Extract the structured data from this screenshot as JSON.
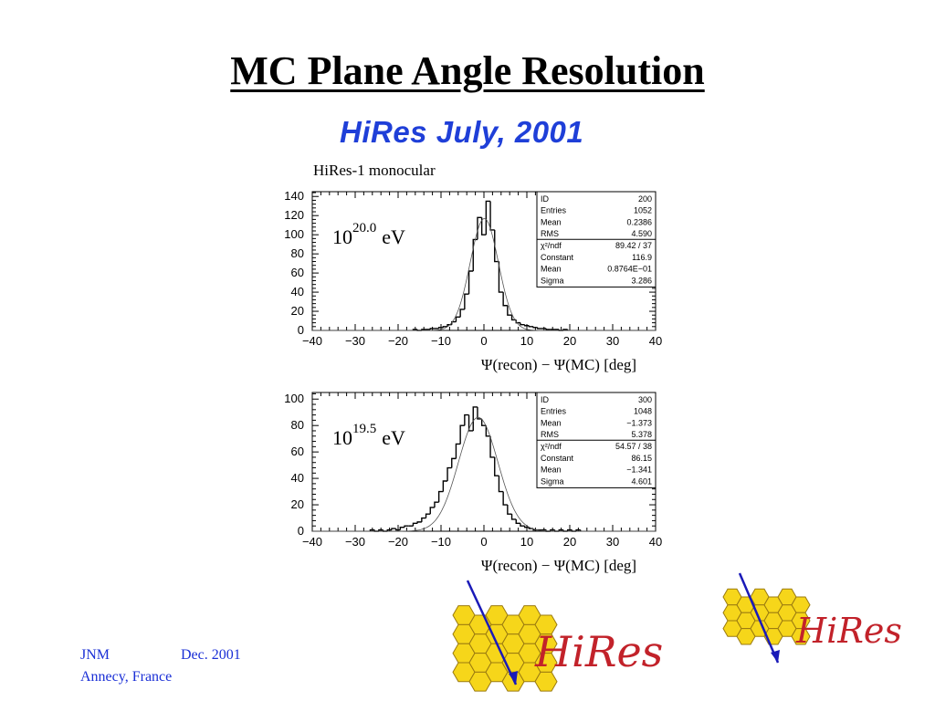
{
  "slide": {
    "title": "MC Plane Angle Resolution",
    "banner": "HiRes July, 2001",
    "caption": "HiRes-1 monocular"
  },
  "footer": {
    "author": "JNM",
    "date": "Dec. 2001",
    "place": "Annecy, France"
  },
  "logo": {
    "text": "HiRes"
  },
  "chart_data": [
    {
      "type": "histogram",
      "energy": {
        "base": "10",
        "exponent": "20.0",
        "unit": "eV"
      },
      "xlabel": "Ψ(recon) − Ψ(MC) [deg]",
      "xlim": [
        -40,
        40
      ],
      "ylim": [
        0,
        145
      ],
      "xticks": [
        -40,
        -30,
        -20,
        -10,
        0,
        10,
        20,
        30,
        40
      ],
      "yticks": [
        0,
        20,
        40,
        60,
        80,
        100,
        120,
        140
      ],
      "stats": [
        [
          "ID",
          "200"
        ],
        [
          "Entries",
          "1052"
        ],
        [
          "Mean",
          "0.2386"
        ],
        [
          "RMS",
          "4.590"
        ],
        [
          "χ²/ndf",
          "89.42   /   37"
        ],
        [
          "Constant",
          "116.9"
        ],
        [
          "Mean",
          "0.8764E−01"
        ],
        [
          "Sigma",
          "3.286"
        ]
      ],
      "fit": {
        "constant": 116.9,
        "mean": 0.08764,
        "sigma": 3.286
      },
      "bin_width": 1,
      "bins": [
        {
          "x": -16,
          "y": 1
        },
        {
          "x": -15,
          "y": 0
        },
        {
          "x": -14,
          "y": 1
        },
        {
          "x": -13,
          "y": 1
        },
        {
          "x": -12,
          "y": 2
        },
        {
          "x": -11,
          "y": 2
        },
        {
          "x": -10,
          "y": 3
        },
        {
          "x": -9,
          "y": 4
        },
        {
          "x": -8,
          "y": 6
        },
        {
          "x": -7,
          "y": 9
        },
        {
          "x": -6,
          "y": 14
        },
        {
          "x": -5,
          "y": 22
        },
        {
          "x": -4,
          "y": 38
        },
        {
          "x": -3,
          "y": 62
        },
        {
          "x": -2,
          "y": 95
        },
        {
          "x": -1,
          "y": 118
        },
        {
          "x": 0,
          "y": 100
        },
        {
          "x": 1,
          "y": 135
        },
        {
          "x": 2,
          "y": 105
        },
        {
          "x": 3,
          "y": 72
        },
        {
          "x": 4,
          "y": 40
        },
        {
          "x": 5,
          "y": 26
        },
        {
          "x": 6,
          "y": 16
        },
        {
          "x": 7,
          "y": 11
        },
        {
          "x": 8,
          "y": 8
        },
        {
          "x": 9,
          "y": 6
        },
        {
          "x": 10,
          "y": 5
        },
        {
          "x": 11,
          "y": 4
        },
        {
          "x": 12,
          "y": 3
        },
        {
          "x": 13,
          "y": 2
        },
        {
          "x": 14,
          "y": 2
        },
        {
          "x": 15,
          "y": 1
        },
        {
          "x": 16,
          "y": 1
        },
        {
          "x": 17,
          "y": 1
        },
        {
          "x": 18,
          "y": 0
        },
        {
          "x": 19,
          "y": 1
        }
      ]
    },
    {
      "type": "histogram",
      "energy": {
        "base": "10",
        "exponent": "19.5",
        "unit": "eV"
      },
      "xlabel": "Ψ(recon) − Ψ(MC) [deg]",
      "xlim": [
        -40,
        40
      ],
      "ylim": [
        0,
        105
      ],
      "xticks": [
        -40,
        -30,
        -20,
        -10,
        0,
        10,
        20,
        30,
        40
      ],
      "yticks": [
        0,
        20,
        40,
        60,
        80,
        100
      ],
      "stats": [
        [
          "ID",
          "300"
        ],
        [
          "Entries",
          "1048"
        ],
        [
          "Mean",
          "−1.373"
        ],
        [
          "RMS",
          "5.378"
        ],
        [
          "χ²/ndf",
          "54.57   /   38"
        ],
        [
          "Constant",
          "86.15"
        ],
        [
          "Mean",
          "−1.341"
        ],
        [
          "Sigma",
          "4.601"
        ]
      ],
      "fit": {
        "constant": 86.15,
        "mean": -1.341,
        "sigma": 4.601
      },
      "bin_width": 1,
      "bins": [
        {
          "x": -26,
          "y": 1
        },
        {
          "x": -25,
          "y": 0
        },
        {
          "x": -24,
          "y": 1
        },
        {
          "x": -23,
          "y": 0
        },
        {
          "x": -22,
          "y": 1
        },
        {
          "x": -21,
          "y": 2
        },
        {
          "x": -20,
          "y": 1
        },
        {
          "x": -19,
          "y": 3
        },
        {
          "x": -18,
          "y": 4
        },
        {
          "x": -17,
          "y": 4
        },
        {
          "x": -16,
          "y": 6
        },
        {
          "x": -15,
          "y": 7
        },
        {
          "x": -14,
          "y": 10
        },
        {
          "x": -13,
          "y": 13
        },
        {
          "x": -12,
          "y": 18
        },
        {
          "x": -11,
          "y": 22
        },
        {
          "x": -10,
          "y": 30
        },
        {
          "x": -9,
          "y": 38
        },
        {
          "x": -8,
          "y": 48
        },
        {
          "x": -7,
          "y": 55
        },
        {
          "x": -6,
          "y": 66
        },
        {
          "x": -5,
          "y": 80
        },
        {
          "x": -4,
          "y": 88
        },
        {
          "x": -3,
          "y": 76
        },
        {
          "x": -2,
          "y": 94
        },
        {
          "x": -1,
          "y": 85
        },
        {
          "x": 0,
          "y": 80
        },
        {
          "x": 1,
          "y": 72
        },
        {
          "x": 2,
          "y": 56
        },
        {
          "x": 3,
          "y": 42
        },
        {
          "x": 4,
          "y": 30
        },
        {
          "x": 5,
          "y": 20
        },
        {
          "x": 6,
          "y": 13
        },
        {
          "x": 7,
          "y": 9
        },
        {
          "x": 8,
          "y": 6
        },
        {
          "x": 9,
          "y": 4
        },
        {
          "x": 10,
          "y": 3
        },
        {
          "x": 11,
          "y": 2
        },
        {
          "x": 12,
          "y": 1
        },
        {
          "x": 13,
          "y": 1
        },
        {
          "x": 14,
          "y": 1
        },
        {
          "x": 15,
          "y": 0
        },
        {
          "x": 16,
          "y": 1
        },
        {
          "x": 17,
          "y": 0
        },
        {
          "x": 18,
          "y": 1
        },
        {
          "x": 19,
          "y": 0
        },
        {
          "x": 20,
          "y": 1
        },
        {
          "x": 21,
          "y": 0
        },
        {
          "x": 22,
          "y": 1
        }
      ]
    }
  ]
}
